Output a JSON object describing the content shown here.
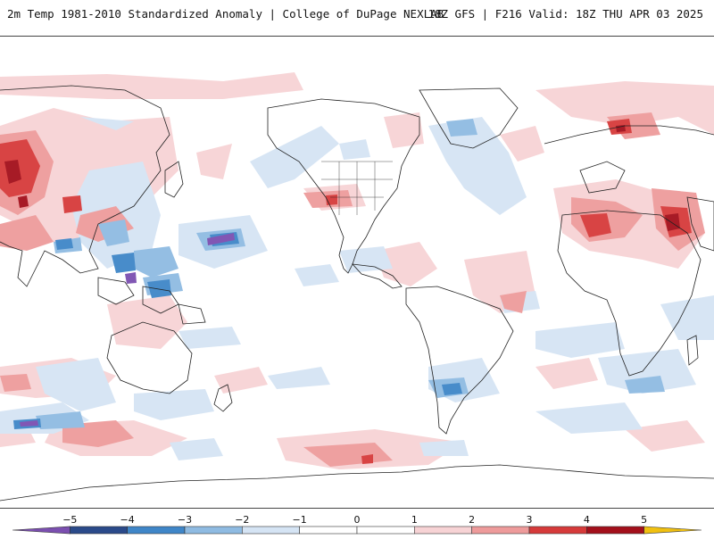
{
  "header": {
    "title_left": "2m Temp 1981-2010 Standardized Anomaly | College of DuPage NEXLAB",
    "title_right": "18Z GFS | F216 Valid: 18Z THU APR 03 2025"
  },
  "colorbar": {
    "labels": [
      "−5",
      "−4",
      "−3",
      "−2",
      "−1",
      "0",
      "1",
      "2",
      "3",
      "4",
      "5"
    ],
    "bins": [
      {
        "from": -6,
        "to": -5,
        "color": "#7b4fb0"
      },
      {
        "from": -5,
        "to": -4,
        "color": "#2a4a8a"
      },
      {
        "from": -4,
        "to": -3,
        "color": "#3f86c8"
      },
      {
        "from": -3,
        "to": -2,
        "color": "#8fbbe2"
      },
      {
        "from": -2,
        "to": -1,
        "color": "#d5e4f4"
      },
      {
        "from": -1,
        "to": 0,
        "color": "#ffffff"
      },
      {
        "from": 0,
        "to": 1,
        "color": "#ffffff"
      },
      {
        "from": 1,
        "to": 2,
        "color": "#f7d3d5"
      },
      {
        "from": 2,
        "to": 3,
        "color": "#ee9b9b"
      },
      {
        "from": 3,
        "to": 4,
        "color": "#d63a3a"
      },
      {
        "from": 4,
        "to": 5,
        "color": "#a30f1b"
      },
      {
        "from": 5,
        "to": 6,
        "color": "#f0c010"
      }
    ]
  },
  "colors": {
    "warm_light": "#f7d3d5",
    "warm_mid": "#ee9b9b",
    "warm_strong": "#d63a3a",
    "warm_extreme": "#a30f1b",
    "cool_light": "#d5e4f4",
    "cool_mid": "#8fbbe2",
    "cool_strong": "#3f86c8",
    "cool_extreme": "#7b4fb0",
    "coastline": "#222222"
  }
}
